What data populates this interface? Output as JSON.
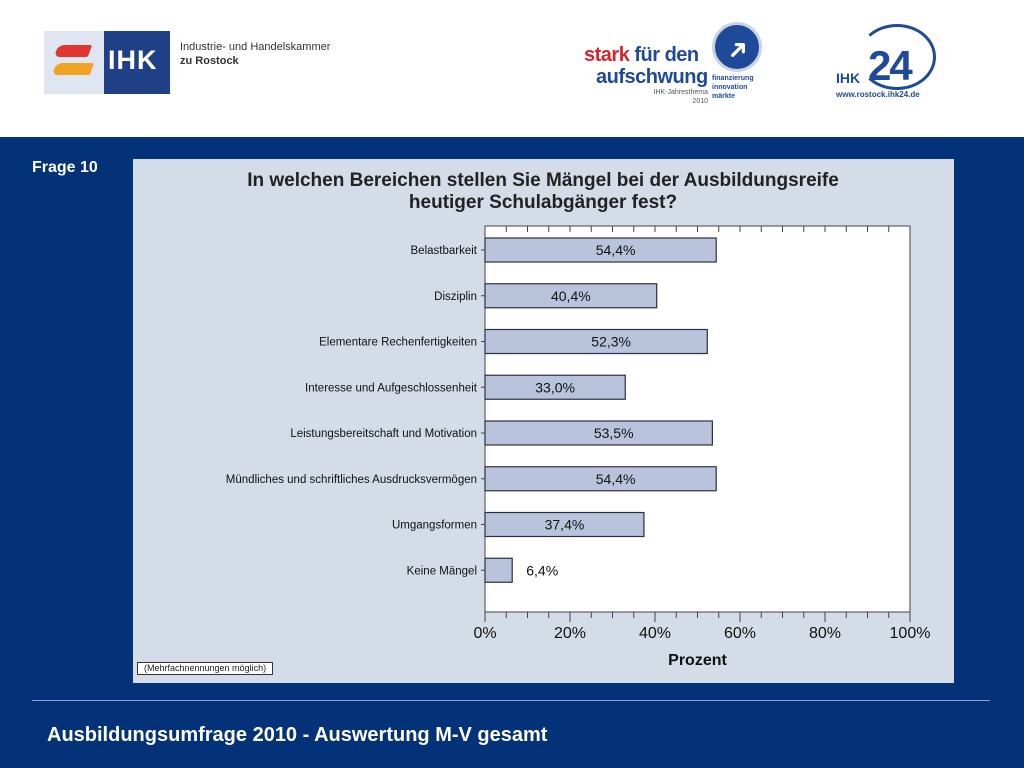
{
  "header": {
    "ihk_logo_text": "IHK",
    "chamber_line1": "Industrie- und Handelskammer",
    "chamber_line2": "zu Rostock",
    "stark_logo": {
      "word_stark": "stark",
      "word_fuer_den": " für den",
      "word_aufschwung": "aufschwung",
      "tag_line1": "IHK-Jahresthema",
      "tag_line2": "2010",
      "topics": [
        "finanzierung",
        "innovation",
        "märkte"
      ]
    },
    "ihk24_logo": {
      "ihk": "IHK",
      "number": "24",
      "url": "www.rostock.ihk24.de"
    }
  },
  "main": {
    "frage_label": "Frage 10",
    "footnote": "(Mehrfachnennungen möglich)",
    "footer_title": "Ausbildungsumfrage 2010 - Auswertung M-V gesamt"
  },
  "colors": {
    "background": "#033278",
    "panel": "#d4dce7",
    "bar_fill": "#b9c4dc",
    "bar_stroke": "#2a2f45"
  },
  "chart_data": {
    "type": "bar",
    "orientation": "horizontal",
    "title": "In welchen Bereichen stellen Sie Mängel bei der Ausbildungsreife heutiger Schulabgänger fest?",
    "title_lines": [
      "In welchen Bereichen stellen Sie Mängel bei der Ausbildungsreife",
      "heutiger Schulabgänger fest?"
    ],
    "xlabel": "Prozent",
    "ylabel": "",
    "xlim": [
      0,
      100
    ],
    "x_ticks": [
      "0%",
      "20%",
      "40%",
      "60%",
      "80%",
      "100%"
    ],
    "categories": [
      "Belastbarkeit",
      "Disziplin",
      "Elementare Rechenfertigkeiten",
      "Interesse und Aufgeschlossenheit",
      "Leistungsbereitschaft und Motivation",
      "Mündliches und schriftliches Ausdrucksvermögen",
      "Umgangsformen",
      "Keine Mängel"
    ],
    "values": [
      54.4,
      40.4,
      52.3,
      33.0,
      53.5,
      54.4,
      37.4,
      6.4
    ],
    "value_labels": [
      "54,4%",
      "40,4%",
      "52,3%",
      "33,0%",
      "53,5%",
      "54,4%",
      "37,4%",
      "6,4%"
    ],
    "grid": false
  }
}
